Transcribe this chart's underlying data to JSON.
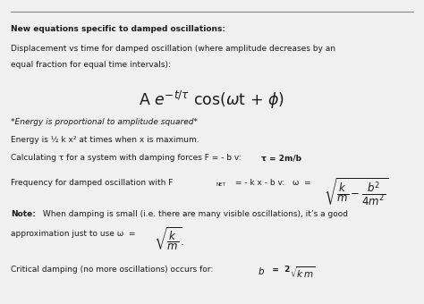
{
  "bg_color": "#f0f0f0",
  "text_color": "#1a1a1a",
  "line_color": "#888888",
  "figsize": [
    4.74,
    3.4
  ],
  "dpi": 100
}
